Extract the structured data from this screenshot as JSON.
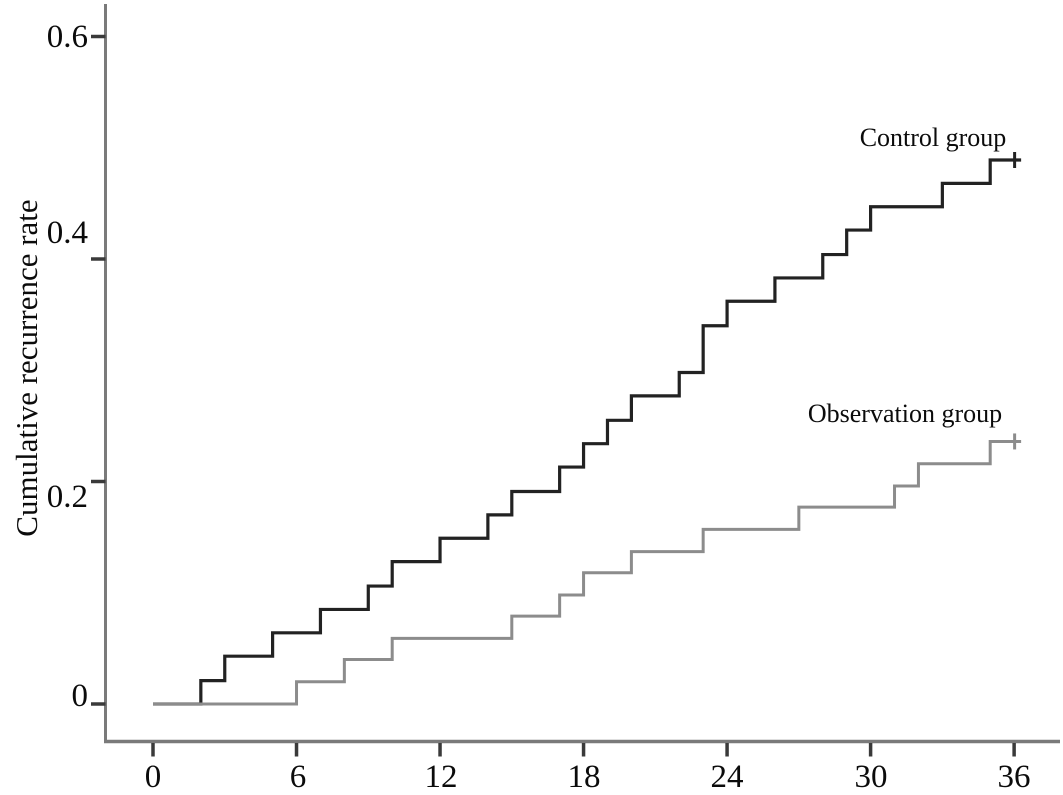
{
  "figure": {
    "background_color": "#ffffff",
    "text_color": "#0b0b0b"
  },
  "axis_style": {
    "axis_line_color": "#7a7a7a",
    "tick_mark_color": "#3a3a3a"
  },
  "chart_data": {
    "type": "line",
    "subtype": "kaplan-meier-step",
    "title": "",
    "xlabel": "",
    "ylabel": "Cumulative recurrence rate",
    "x_ticks": [
      0,
      6,
      12,
      18,
      24,
      30,
      36
    ],
    "x_tick_labels": [
      "0",
      "6",
      "12",
      "18",
      "24",
      "30",
      "36"
    ],
    "y_ticks": [
      0,
      0.2,
      0.4,
      0.6
    ],
    "y_tick_labels": [
      "0",
      "0.2",
      "0.4",
      "0.6"
    ],
    "xlim": [
      -2,
      38
    ],
    "ylim": [
      -0.033,
      0.63
    ],
    "grid": false,
    "legend_position": "inline-annotations",
    "series": [
      {
        "name": "Control group",
        "color": "#222222",
        "stroke_width": 3.2,
        "censor_time": 36,
        "steps": [
          [
            0,
            0
          ],
          [
            2,
            0.021
          ],
          [
            3,
            0.043
          ],
          [
            5,
            0.064
          ],
          [
            7,
            0.085
          ],
          [
            9,
            0.106
          ],
          [
            10,
            0.128
          ],
          [
            12,
            0.149
          ],
          [
            14,
            0.17
          ],
          [
            15,
            0.191
          ],
          [
            17,
            0.213
          ],
          [
            18,
            0.234
          ],
          [
            19,
            0.255
          ],
          [
            20,
            0.277
          ],
          [
            22,
            0.298
          ],
          [
            23,
            0.34
          ],
          [
            24,
            0.362
          ],
          [
            26,
            0.383
          ],
          [
            28,
            0.404
          ],
          [
            29,
            0.426
          ],
          [
            30,
            0.447
          ],
          [
            33,
            0.468
          ],
          [
            35,
            0.489
          ]
        ]
      },
      {
        "name": "Observation group",
        "color": "#8c8c8c",
        "stroke_width": 3.0,
        "censor_time": 36,
        "steps": [
          [
            0,
            0
          ],
          [
            6,
            0.02
          ],
          [
            8,
            0.04
          ],
          [
            10,
            0.059
          ],
          [
            15,
            0.079
          ],
          [
            17,
            0.098
          ],
          [
            18,
            0.118
          ],
          [
            20,
            0.137
          ],
          [
            23,
            0.157
          ],
          [
            27,
            0.177
          ],
          [
            31,
            0.196
          ],
          [
            32,
            0.216
          ],
          [
            35,
            0.236
          ]
        ]
      }
    ]
  }
}
